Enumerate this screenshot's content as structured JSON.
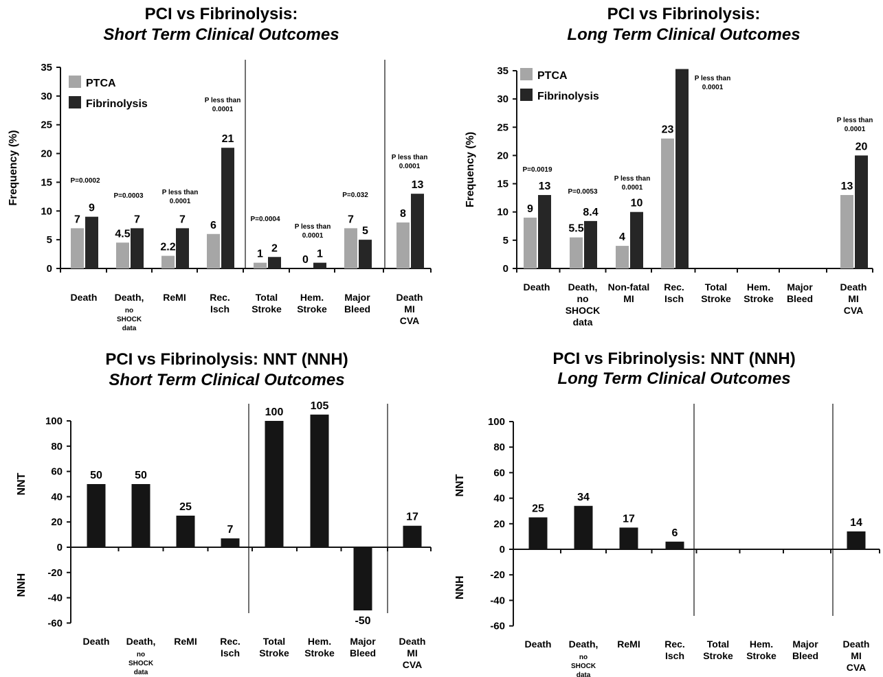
{
  "colors": {
    "ptca": "#a6a6a6",
    "fibrinolysis": "#262626",
    "nnt_bar": "#151515",
    "axis": "#111111"
  },
  "chart_data": [
    {
      "type": "bar",
      "title": "PCI vs Fibrinolysis:",
      "subtitle": "Short Term Clinical Outcomes",
      "ylabel": "Frequency (%)",
      "ylim": [
        0,
        35
      ],
      "yticks": [
        0,
        5,
        10,
        15,
        20,
        25,
        30,
        35
      ],
      "grid": false,
      "legend": "top-left",
      "categories": [
        [
          "Death"
        ],
        [
          "Death,",
          "no",
          "SHOCK",
          "data"
        ],
        [
          "ReMI"
        ],
        [
          "Rec.",
          "Isch"
        ],
        [
          "Total",
          "Stroke"
        ],
        [
          "Hem.",
          "Stroke"
        ],
        [
          "Major",
          "Bleed"
        ],
        [
          "Death",
          "MI",
          "CVA"
        ]
      ],
      "series": [
        {
          "name": "PTCA",
          "values": [
            7,
            4.5,
            2.2,
            6,
            1,
            0,
            7,
            8
          ],
          "labels": [
            "7",
            "4.5",
            "2.2",
            "6",
            "1",
            "0",
            "7",
            "8"
          ]
        },
        {
          "name": "Fibrinolysis",
          "values": [
            9,
            7,
            7,
            21,
            2,
            1,
            5,
            13
          ],
          "labels": [
            "9",
            "7",
            "7",
            "21",
            "2",
            "1",
            "5",
            "13"
          ]
        }
      ],
      "pvalues": [
        [
          "P=0.0002"
        ],
        [
          "P=0.0003"
        ],
        [
          "P less than",
          "0.0001"
        ],
        [
          "P less than",
          "0.0001"
        ],
        [
          "P=0.0004"
        ],
        [
          "P less than",
          "0.0001"
        ],
        [
          "P=0.032"
        ],
        [
          "P less than",
          "0.0001"
        ]
      ]
    },
    {
      "type": "bar",
      "title": "PCI vs Fibrinolysis:",
      "subtitle": "Long Term Clinical Outcomes",
      "ylabel": "Frequency (%)",
      "ylim": [
        0,
        35
      ],
      "yticks": [
        0,
        5,
        10,
        15,
        20,
        25,
        30,
        35
      ],
      "grid": false,
      "legend": "top-left",
      "categories": [
        [
          "Death"
        ],
        [
          "Death,",
          "no",
          "SHOCK",
          "data"
        ],
        [
          "Non-fatal",
          "MI"
        ],
        [
          "Rec.",
          "Isch"
        ],
        [
          "Total",
          "Stroke"
        ],
        [
          "Hem.",
          "Stroke"
        ],
        [
          "Major",
          "Bleed"
        ],
        [
          "Death",
          "MI",
          "CVA"
        ]
      ],
      "series": [
        {
          "name": "PTCA",
          "values": [
            9,
            5.5,
            4,
            23,
            null,
            null,
            null,
            13
          ],
          "labels": [
            "9",
            "5.5",
            "4",
            "23",
            "",
            "",
            "",
            "13"
          ]
        },
        {
          "name": "Fibrinolysis",
          "values": [
            13,
            8.4,
            10,
            35.3,
            null,
            null,
            null,
            20
          ],
          "labels": [
            "13",
            "8.4",
            "10",
            "",
            "",
            "",
            "",
            "20"
          ]
        }
      ],
      "pvalues": [
        [
          "P=0.0019"
        ],
        [
          "P=0.0053"
        ],
        [
          "P less than",
          "0.0001"
        ],
        [
          "P less than",
          "0.0001"
        ],
        [],
        [],
        [],
        [
          "P less than",
          "0.0001"
        ]
      ]
    },
    {
      "type": "bar",
      "title": "PCI vs Fibrinolysis: NNT (NNH)",
      "subtitle": "Short Term Clinical Outcomes",
      "ylabel_pos": "NNT",
      "ylabel_neg": "NNH",
      "ylim": [
        -60,
        100
      ],
      "yticks": [
        -60,
        -40,
        -20,
        0,
        20,
        40,
        60,
        80,
        100
      ],
      "grid": false,
      "categories": [
        [
          "Death"
        ],
        [
          "Death,",
          "no",
          "SHOCK",
          "data"
        ],
        [
          "ReMI"
        ],
        [
          "Rec.",
          "Isch"
        ],
        [
          "Total",
          "Stroke"
        ],
        [
          "Hem.",
          "Stroke"
        ],
        [
          "Major",
          "Bleed"
        ],
        [
          "Death",
          "MI",
          "CVA"
        ]
      ],
      "values": [
        50,
        50,
        25,
        7,
        100,
        105,
        -50,
        17
      ],
      "labels": [
        "50",
        "50",
        "25",
        "7",
        "100",
        "105",
        "-50",
        "17"
      ]
    },
    {
      "type": "bar",
      "title": "PCI vs Fibrinolysis: NNT (NNH)",
      "subtitle": "Long Term Clinical Outcomes",
      "ylabel_pos": "NNT",
      "ylabel_neg": "NNH",
      "ylim": [
        -60,
        100
      ],
      "yticks": [
        -60,
        -40,
        -20,
        0,
        20,
        40,
        60,
        80,
        100
      ],
      "grid": false,
      "categories": [
        [
          "Death"
        ],
        [
          "Death,",
          "no",
          "SHOCK",
          "data"
        ],
        [
          "ReMI"
        ],
        [
          "Rec.",
          "Isch"
        ],
        [
          "Total",
          "Stroke"
        ],
        [
          "Hem.",
          "Stroke"
        ],
        [
          "Major",
          "Bleed"
        ],
        [
          "Death",
          "MI",
          "CVA"
        ]
      ],
      "values": [
        25,
        34,
        17,
        6,
        null,
        null,
        null,
        14
      ],
      "labels": [
        "25",
        "34",
        "17",
        "6",
        "",
        "",
        "",
        "14"
      ]
    }
  ]
}
